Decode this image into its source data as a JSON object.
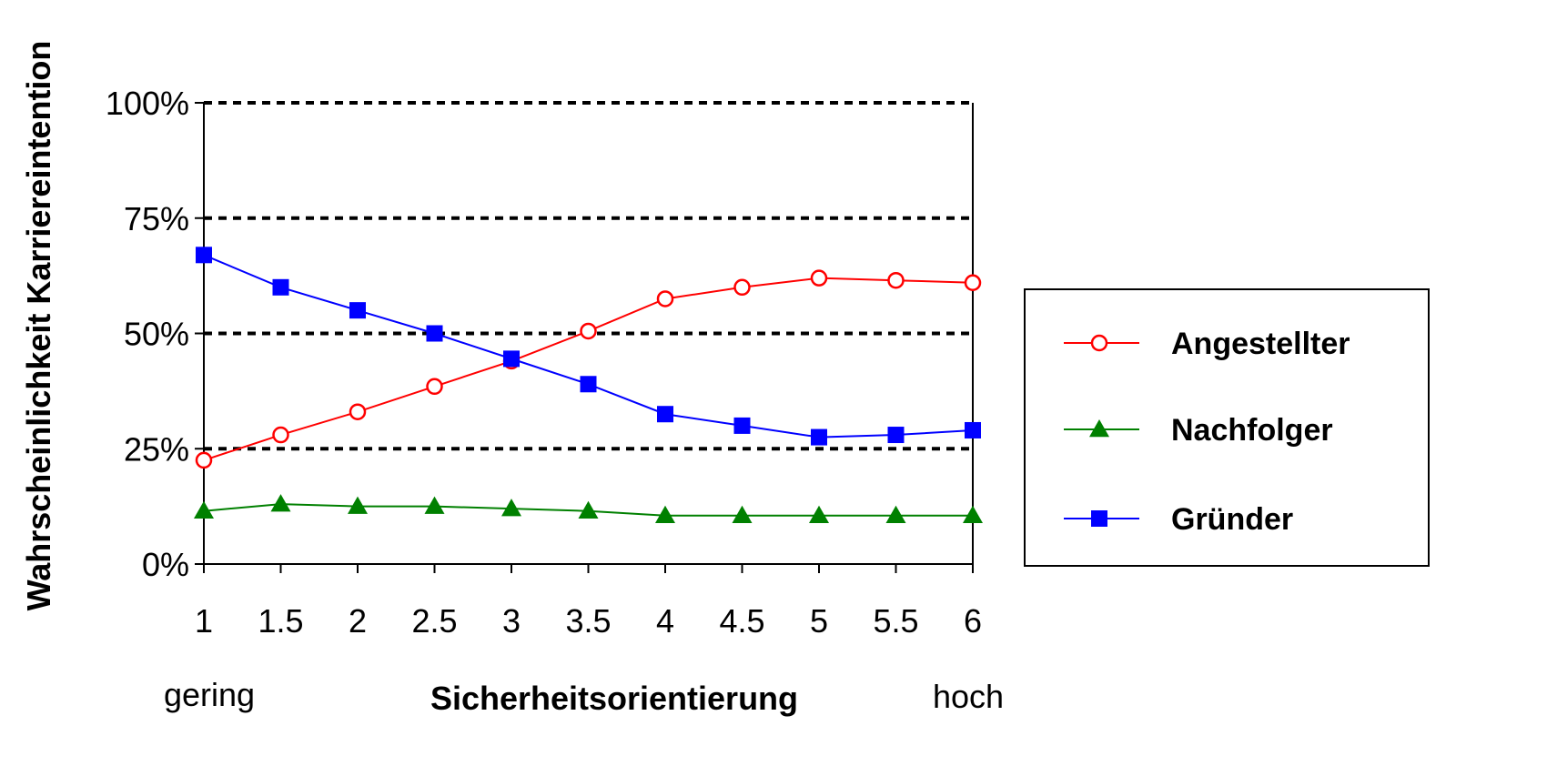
{
  "chart_data": {
    "type": "line",
    "x": [
      1,
      1.5,
      2,
      2.5,
      3,
      3.5,
      4,
      4.5,
      5,
      5.5,
      6
    ],
    "x_tick_labels": [
      "1",
      "1.5",
      "2",
      "2.5",
      "3",
      "3.5",
      "4",
      "4.5",
      "5",
      "5.5",
      "6"
    ],
    "y_tick_labels": [
      "0%",
      "25%",
      "50%",
      "75%",
      "100%"
    ],
    "y_ticks": [
      0,
      25,
      50,
      75,
      100
    ],
    "ylim": [
      0,
      100
    ],
    "xlabel": "Sicherheitsorientierung",
    "ylabel": "Wahrscheinlichkeit  Karriereintention",
    "x_low_label": "gering",
    "x_high_label": "hoch",
    "grid": "dotted horizontal lines at 25%, 50%, 75%, 100%",
    "legend_position": "right",
    "series": [
      {
        "name": "Angestellter",
        "color": "#ff0000",
        "marker": "open-circle",
        "values": [
          22.5,
          28,
          33,
          38.5,
          44,
          50.5,
          57.5,
          60,
          62,
          61.5,
          61
        ]
      },
      {
        "name": "Nachfolger",
        "color": "#008000",
        "marker": "filled-triangle",
        "values": [
          11.5,
          13,
          12.5,
          12.5,
          12,
          11.5,
          10.5,
          10.5,
          10.5,
          10.5,
          10.5
        ]
      },
      {
        "name": "Gründer",
        "color": "#0000ff",
        "marker": "filled-square",
        "values": [
          67,
          60,
          55,
          50,
          44.5,
          39,
          32.5,
          30,
          27.5,
          28,
          29
        ]
      }
    ]
  }
}
